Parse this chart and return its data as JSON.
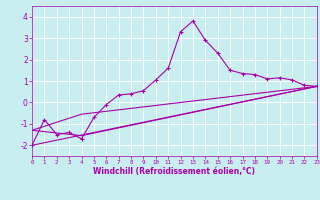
{
  "xlabel": "Windchill (Refroidissement éolien,°C)",
  "xlim": [
    0,
    23
  ],
  "ylim": [
    -2.5,
    4.5
  ],
  "yticks": [
    -2,
    -1,
    0,
    1,
    2,
    3,
    4
  ],
  "xticks": [
    0,
    1,
    2,
    3,
    4,
    5,
    6,
    7,
    8,
    9,
    10,
    11,
    12,
    13,
    14,
    15,
    16,
    17,
    18,
    19,
    20,
    21,
    22,
    23
  ],
  "bg_color": "#c8eef0",
  "line_color": "#aa00aa",
  "grid_color": "#ffffff",
  "line1_x": [
    0,
    1,
    2,
    3,
    4,
    5,
    6,
    7,
    8,
    9,
    10,
    11,
    12,
    13,
    14,
    15,
    16,
    17,
    18,
    19,
    20,
    21,
    22,
    23
  ],
  "line1_y": [
    -2.0,
    -0.8,
    -1.5,
    -1.4,
    -1.7,
    -0.7,
    -0.1,
    0.35,
    0.4,
    0.55,
    1.05,
    1.6,
    3.3,
    3.8,
    2.9,
    2.3,
    1.5,
    1.35,
    1.3,
    1.1,
    1.15,
    1.05,
    0.8,
    0.75
  ],
  "line2_x": [
    0,
    23
  ],
  "line2_y": [
    -2.0,
    0.75
  ],
  "line3_x": [
    0,
    4,
    23
  ],
  "line3_y": [
    -1.3,
    -0.55,
    0.75
  ],
  "line4_x": [
    0,
    4,
    23
  ],
  "line4_y": [
    -1.3,
    -1.55,
    0.75
  ]
}
